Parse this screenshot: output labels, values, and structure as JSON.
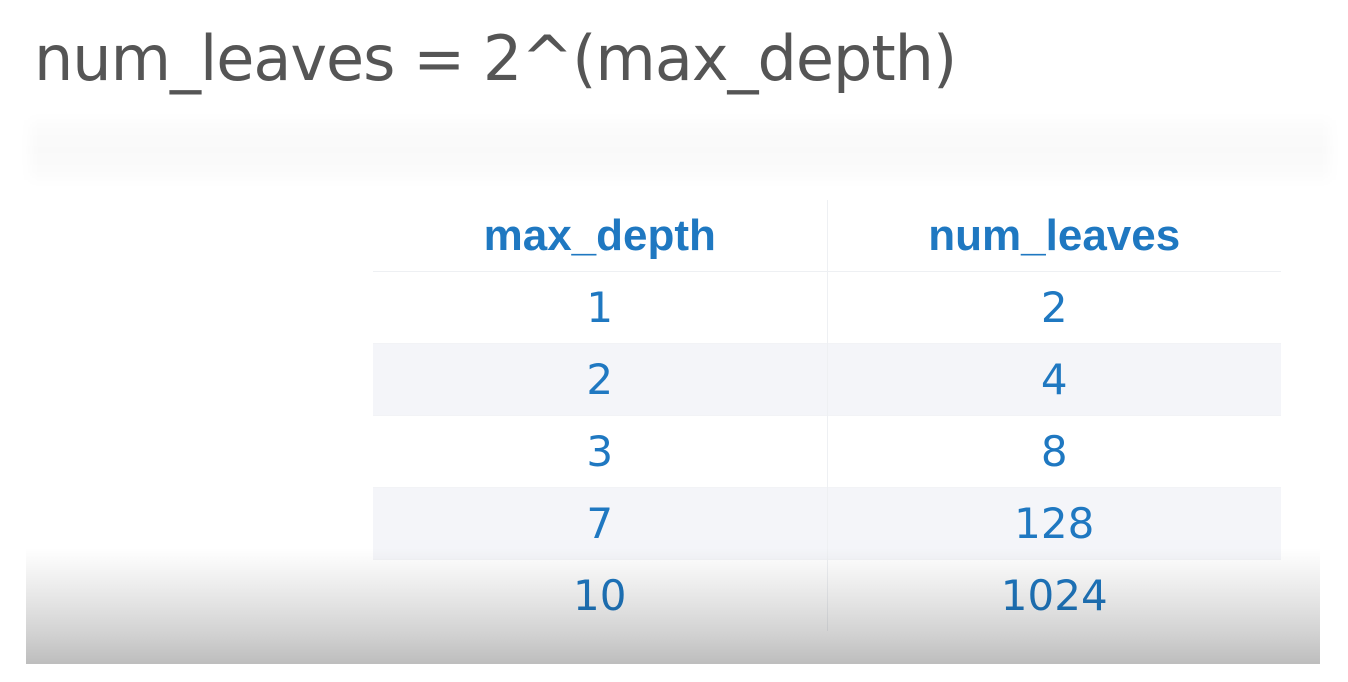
{
  "title": "num_leaves = 2^(max_depth)",
  "table": {
    "headers": [
      "max_depth",
      "num_leaves"
    ],
    "rows": [
      [
        "1",
        "2"
      ],
      [
        "2",
        "4"
      ],
      [
        "3",
        "8"
      ],
      [
        "7",
        "128"
      ],
      [
        "10",
        "1024"
      ]
    ]
  },
  "colors": {
    "accent": "#1f78c1",
    "title_text": "#555555",
    "stripe": "#f4f5f9"
  }
}
